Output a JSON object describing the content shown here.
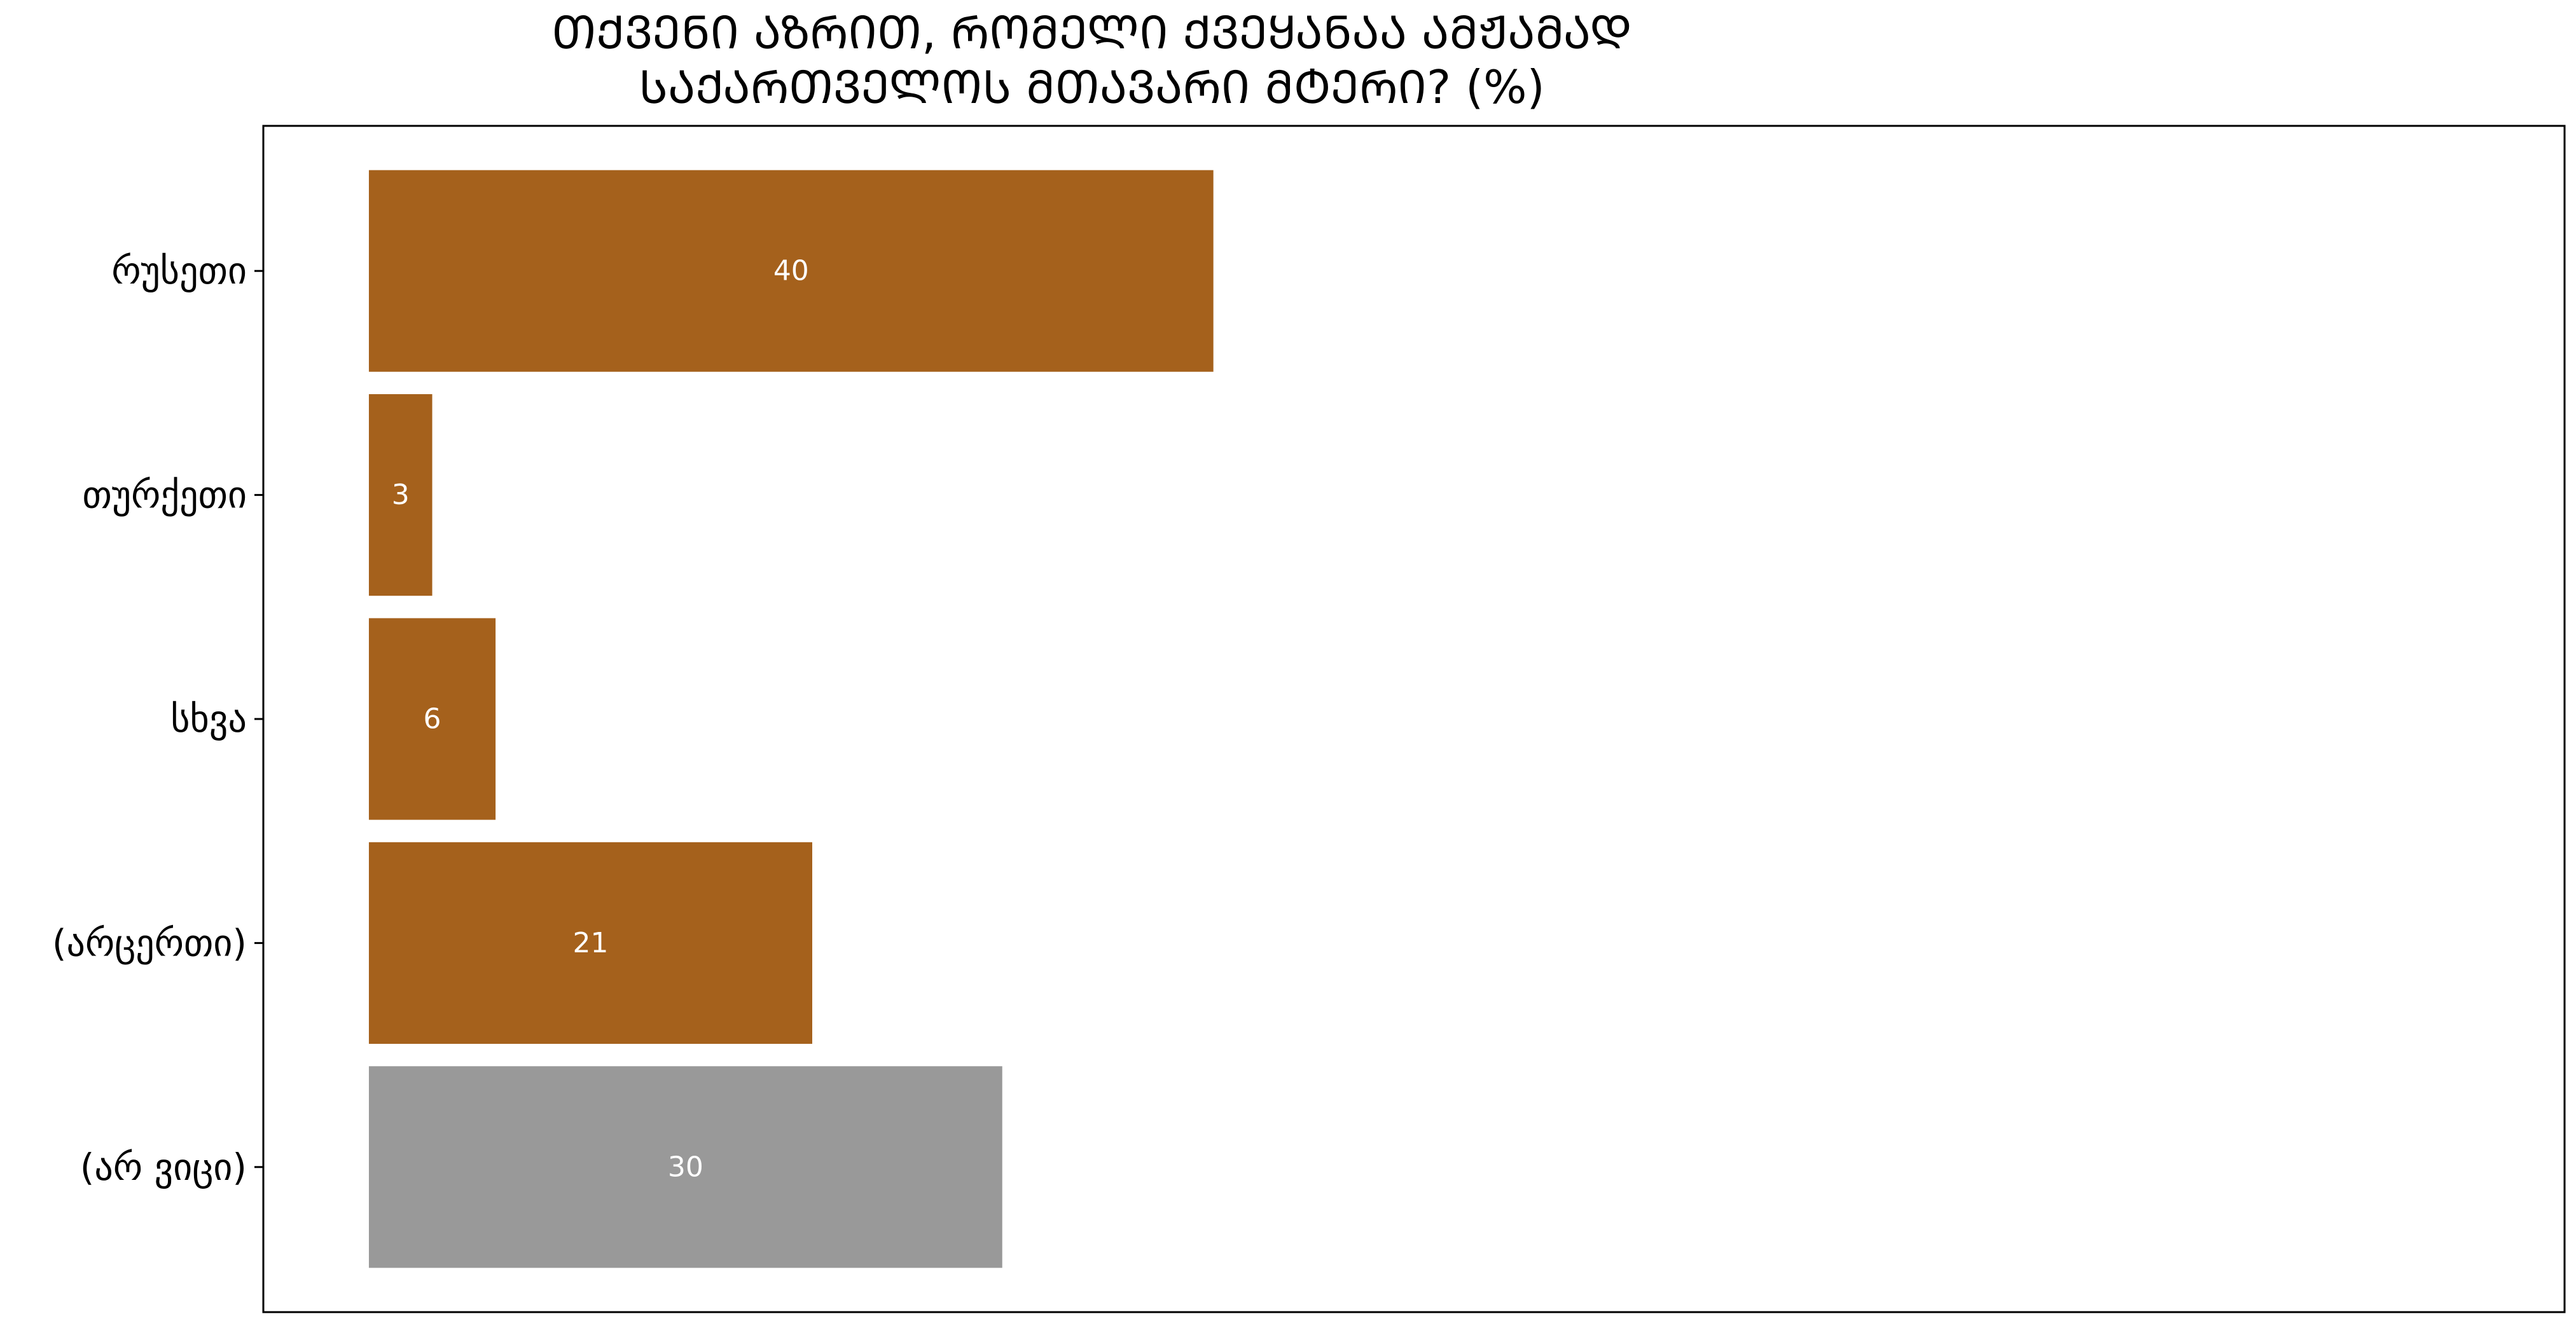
{
  "chart_data": {
    "type": "bar",
    "orientation": "horizontal",
    "title_lines": [
      "ᲗᲥᲕᲔᲜᲘ ᲐᲖᲠᲘᲗ, ᲠᲝᲛᲔᲚᲘ ᲥᲕᲔᲧᲐᲜᲐᲐ ᲐᲛᲟᲐᲛᲐᲓ",
      "ᲡᲐᲥᲐᲠᲗᲕᲔᲚᲝᲡ ᲛᲗᲐᲕᲐᲠᲘ ᲛᲢᲔᲠᲘ? (%)"
    ],
    "xlabel": "",
    "ylabel": "",
    "categories": [
      "რუსეთი",
      "თურქეთი",
      "სხვა",
      "(არცერთი)",
      "(არ ვიცი)"
    ],
    "values": [
      40,
      3,
      6,
      21,
      30
    ],
    "value_labels": [
      "40",
      "3",
      "6",
      "21",
      "30"
    ],
    "bar_colors": [
      "#a5611c",
      "#a5611c",
      "#a5611c",
      "#a5611c",
      "#999999"
    ],
    "xlim": [
      -5,
      104
    ],
    "grid": false,
    "legend": "none"
  }
}
